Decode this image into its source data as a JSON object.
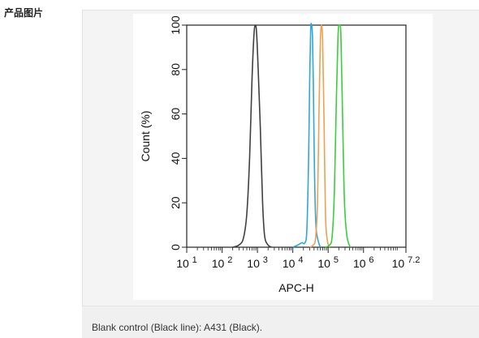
{
  "section": {
    "label": "产品图片"
  },
  "caption": {
    "text": "Blank control (Black line): A431 (Black)."
  },
  "chart_data": {
    "type": "line",
    "xlabel": "APC-H",
    "ylabel": "Count  (%)",
    "x_scale": "log10",
    "xlim": [
      10,
      15848932
    ],
    "ylim": [
      0,
      100
    ],
    "x_ticks": [
      {
        "base": "10",
        "exp": "1"
      },
      {
        "base": "10",
        "exp": "2"
      },
      {
        "base": "10",
        "exp": "3"
      },
      {
        "base": "10",
        "exp": "4"
      },
      {
        "base": "10",
        "exp": "5"
      },
      {
        "base": "10",
        "exp": "6"
      },
      {
        "base": "10",
        "exp": "7.2"
      }
    ],
    "y_ticks": [
      "0",
      "20",
      "40",
      "60",
      "80",
      "100"
    ],
    "grid": false,
    "series": [
      {
        "color": "#404040",
        "points": [
          [
            200,
            0
          ],
          [
            300,
            1
          ],
          [
            400,
            4
          ],
          [
            500,
            15
          ],
          [
            600,
            40
          ],
          [
            700,
            75
          ],
          [
            800,
            96
          ],
          [
            880,
            100
          ],
          [
            950,
            96
          ],
          [
            1050,
            80
          ],
          [
            1200,
            55
          ],
          [
            1400,
            20
          ],
          [
            1600,
            5
          ],
          [
            2000,
            1
          ],
          [
            2500,
            0
          ]
        ]
      },
      {
        "color": "#2fa8d8",
        "points": [
          [
            10000,
            0
          ],
          [
            14000,
            1
          ],
          [
            18000,
            2
          ],
          [
            22000,
            2
          ],
          [
            25000,
            8
          ],
          [
            28000,
            40
          ],
          [
            30000,
            75
          ],
          [
            32000,
            98
          ],
          [
            34000,
            100
          ],
          [
            36000,
            95
          ],
          [
            38000,
            75
          ],
          [
            41000,
            35
          ],
          [
            45000,
            10
          ],
          [
            52000,
            3
          ],
          [
            60000,
            0
          ]
        ]
      },
      {
        "color": "#f0a050",
        "points": [
          [
            30000,
            0
          ],
          [
            38000,
            1
          ],
          [
            44000,
            4
          ],
          [
            50000,
            20
          ],
          [
            55000,
            60
          ],
          [
            60000,
            92
          ],
          [
            65000,
            100
          ],
          [
            70000,
            92
          ],
          [
            76000,
            60
          ],
          [
            84000,
            15
          ],
          [
            95000,
            3
          ],
          [
            110000,
            0
          ]
        ]
      },
      {
        "color": "#3dcc3d",
        "points": [
          [
            80000,
            0
          ],
          [
            110000,
            1
          ],
          [
            130000,
            5
          ],
          [
            150000,
            25
          ],
          [
            170000,
            65
          ],
          [
            190000,
            95
          ],
          [
            210000,
            100
          ],
          [
            230000,
            95
          ],
          [
            255000,
            60
          ],
          [
            290000,
            20
          ],
          [
            340000,
            5
          ],
          [
            420000,
            0
          ]
        ]
      }
    ]
  }
}
